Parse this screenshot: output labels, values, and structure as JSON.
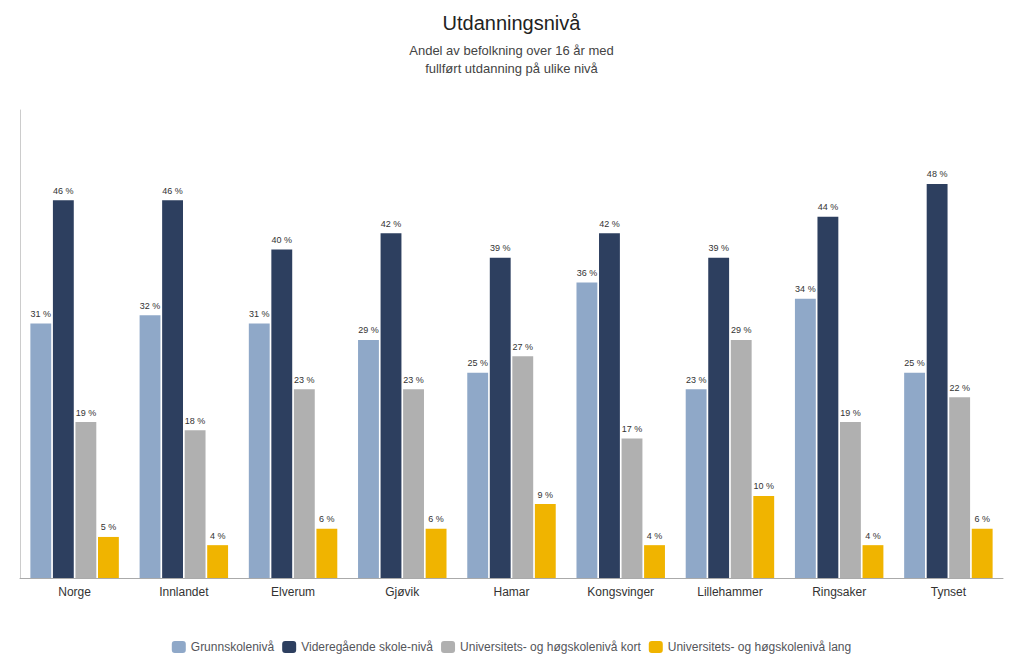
{
  "chart_data": {
    "type": "bar",
    "title": "Utdanningsnivå",
    "subtitle": "Andel av befolkning over 16 år med\nfullført utdanning på ulike nivå",
    "categories": [
      "Norge",
      "Innlandet",
      "Elverum",
      "Gjøvik",
      "Hamar",
      "Kongsvinger",
      "Lillehammer",
      "Ringsaker",
      "Tynset"
    ],
    "series": [
      {
        "name": "Grunnskolenivå",
        "color": "#8fa8c8",
        "values": [
          31,
          32,
          31,
          29,
          25,
          36,
          23,
          34,
          25
        ],
        "value_labels": [
          "31 %",
          "32 %",
          "31 %",
          "29 %",
          "25 %",
          "36 %",
          "23 %",
          "34 %",
          "25 %"
        ]
      },
      {
        "name": "Videregående skole-nivå",
        "color": "#2d3f5f",
        "values": [
          46,
          46,
          40,
          42,
          39,
          42,
          39,
          44,
          48
        ],
        "value_labels": [
          "46 %",
          "46 %",
          "40 %",
          "42 %",
          "39 %",
          "42 %",
          "39 %",
          "44 %",
          "48 %"
        ]
      },
      {
        "name": "Universitets- og høgskolenivå kort",
        "color": "#b0b0b0",
        "values": [
          19,
          18,
          23,
          23,
          27,
          17,
          29,
          19,
          22
        ],
        "value_labels": [
          "19 %",
          "18 %",
          "23 %",
          "23 %",
          "27 %",
          "17 %",
          "29 %",
          "19 %",
          "22 %"
        ]
      },
      {
        "name": "Universitets- og høgskolenivå lang",
        "color": "#f0b400",
        "values": [
          5,
          4,
          6,
          6,
          9,
          4,
          10,
          4,
          6
        ],
        "value_labels": [
          "5 %",
          "4 %",
          "6 %",
          "6 %",
          "9 %",
          "4 %",
          "10 %",
          "4 %",
          "6 %"
        ]
      }
    ],
    "ylim": [
      0,
      57
    ],
    "grid": false,
    "legend": "bottom",
    "data_labels": true,
    "tick_labels": "x"
  }
}
